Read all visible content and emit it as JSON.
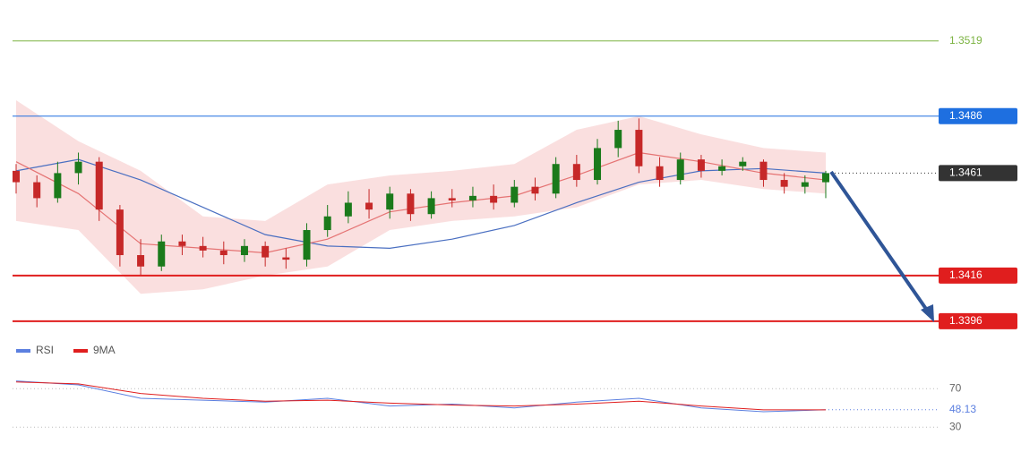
{
  "chart_data": {
    "type": "candlestick",
    "ylim": [
      1.3392,
      1.3537
    ],
    "up_color": "#1b7a1b",
    "down_color": "#c62828",
    "open": [
      1.3462,
      1.3457,
      1.345,
      1.3461,
      1.3466,
      1.3445,
      1.3425,
      1.342,
      1.3431,
      1.3429,
      1.3427,
      1.3425,
      1.3429,
      1.3424,
      1.3423,
      1.3436,
      1.3442,
      1.3448,
      1.3445,
      1.3452,
      1.3443,
      1.345,
      1.3449,
      1.3451,
      1.3448,
      1.3455,
      1.3452,
      1.3465,
      1.3458,
      1.3472,
      1.348,
      1.3464,
      1.3458,
      1.3467,
      1.3462,
      1.3464,
      1.3466,
      1.3458,
      1.3455,
      1.3457
    ],
    "high": [
      1.3465,
      1.346,
      1.3466,
      1.347,
      1.3468,
      1.3447,
      1.3432,
      1.3434,
      1.3434,
      1.3433,
      1.3431,
      1.3432,
      1.3431,
      1.3428,
      1.3439,
      1.3447,
      1.3453,
      1.3454,
      1.3455,
      1.3454,
      1.3453,
      1.3454,
      1.3455,
      1.3456,
      1.3458,
      1.3459,
      1.3468,
      1.3469,
      1.3476,
      1.3484,
      1.3485,
      1.3468,
      1.347,
      1.3469,
      1.3467,
      1.3468,
      1.3467,
      1.3461,
      1.346,
      1.3462
    ],
    "low": [
      1.3452,
      1.3446,
      1.3448,
      1.3456,
      1.344,
      1.342,
      1.3416,
      1.3418,
      1.3425,
      1.3424,
      1.3421,
      1.3422,
      1.342,
      1.3419,
      1.342,
      1.3433,
      1.3439,
      1.3441,
      1.3441,
      1.344,
      1.3441,
      1.3446,
      1.3446,
      1.3445,
      1.3446,
      1.3449,
      1.345,
      1.3455,
      1.3456,
      1.3468,
      1.3461,
      1.3455,
      1.3456,
      1.3459,
      1.346,
      1.3462,
      1.3455,
      1.3452,
      1.3452,
      1.345
    ],
    "close": [
      1.3457,
      1.345,
      1.3461,
      1.3466,
      1.3445,
      1.3425,
      1.342,
      1.3431,
      1.3429,
      1.3427,
      1.3425,
      1.3429,
      1.3424,
      1.3423,
      1.3436,
      1.3442,
      1.3448,
      1.3445,
      1.3452,
      1.3443,
      1.345,
      1.3449,
      1.3451,
      1.3448,
      1.3455,
      1.3452,
      1.3465,
      1.3458,
      1.3472,
      1.348,
      1.3464,
      1.3458,
      1.3467,
      1.3462,
      1.3464,
      1.3466,
      1.3458,
      1.3455,
      1.3457,
      1.3461
    ],
    "overlay_x": [
      0,
      3,
      6,
      9,
      12,
      15,
      18,
      21,
      24,
      27,
      30,
      33,
      36,
      39
    ],
    "band": {
      "color": "#f7c9c9",
      "upper": [
        1.3493,
        1.3475,
        1.3462,
        1.3442,
        1.344,
        1.3456,
        1.346,
        1.3462,
        1.3465,
        1.348,
        1.3486,
        1.3478,
        1.3472,
        1.347
      ],
      "lower": [
        1.344,
        1.3436,
        1.3408,
        1.341,
        1.3416,
        1.342,
        1.3436,
        1.344,
        1.3442,
        1.3446,
        1.3456,
        1.3458,
        1.3454,
        1.3452
      ]
    },
    "lines": [
      {
        "color": "#4a6fc1",
        "values": [
          1.3462,
          1.3467,
          1.3458,
          1.3446,
          1.3434,
          1.3429,
          1.3428,
          1.3432,
          1.3438,
          1.3448,
          1.3457,
          1.3462,
          1.3463,
          1.3461
        ]
      },
      {
        "color": "#e57373",
        "values": [
          1.3466,
          1.3452,
          1.343,
          1.3428,
          1.3426,
          1.3432,
          1.3444,
          1.3448,
          1.3451,
          1.346,
          1.347,
          1.3466,
          1.3461,
          1.3458
        ]
      }
    ],
    "levels": [
      {
        "value": 1.3519,
        "color": "#7cb342",
        "style": "text"
      },
      {
        "value": 1.3486,
        "color": "#1e6fe0",
        "style": "tag"
      },
      {
        "value": 1.3461,
        "color": "#333333",
        "style": "dotted"
      },
      {
        "value": 1.3416,
        "color": "#e01e1e",
        "style": "tag"
      },
      {
        "value": 1.3396,
        "color": "#e01e1e",
        "style": "tag"
      }
    ],
    "rsi": {
      "ylim": [
        20,
        100
      ],
      "yticks": [
        70,
        30
      ],
      "series": [
        {
          "name": "RSI",
          "color": "#5b7fe0",
          "values": [
            78,
            74,
            60,
            58,
            56,
            60,
            52,
            54,
            50,
            56,
            60,
            50,
            46,
            48.13
          ]
        },
        {
          "name": "9MA",
          "color": "#e01e1e",
          "values": [
            77,
            75,
            65,
            60,
            57,
            58,
            55,
            53,
            52,
            54,
            57,
            52,
            48,
            48
          ]
        }
      ]
    }
  }
}
